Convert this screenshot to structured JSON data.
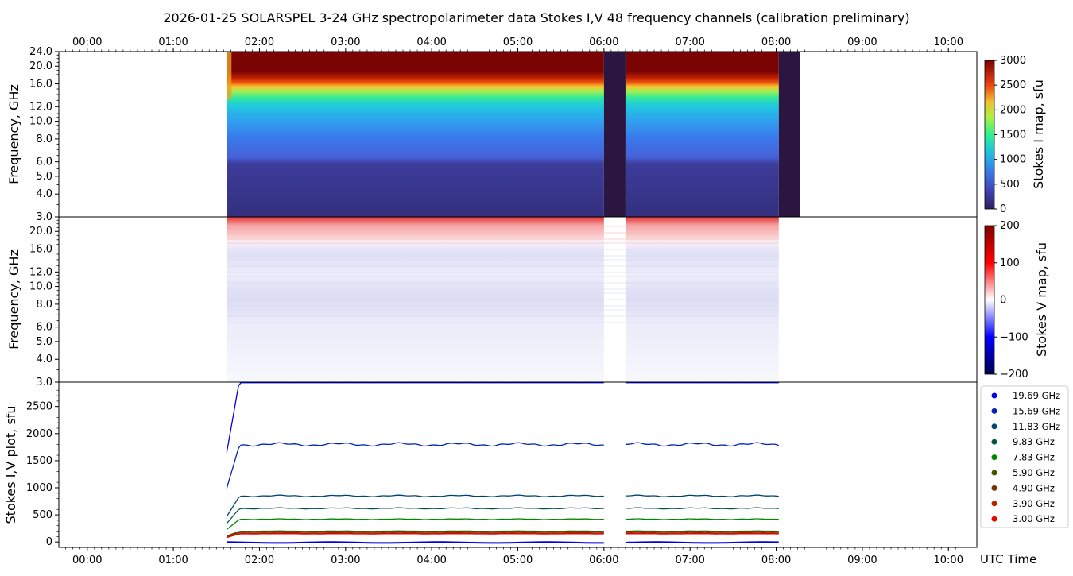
{
  "title": "2026-01-25  SOLARSPEL  3-24 GHz spectropolarimeter data   Stokes I,V   48 frequency channels   (calibration preliminary)",
  "chart_data": [
    {
      "type": "heatmap",
      "name": "stokes-i-map",
      "ylabel": "Frequency, GHz",
      "ylim": [
        3.0,
        24.0
      ],
      "yscale": "log",
      "yticks": [
        "3.0",
        "4.0",
        "5.0",
        "6.0",
        "8.0",
        "10.0",
        "12.0",
        "16.0",
        "20.0",
        "24.0"
      ],
      "xticks": [
        "00:00",
        "01:00",
        "02:00",
        "03:00",
        "04:00",
        "05:00",
        "06:00",
        "07:00",
        "08:00",
        "09:00",
        "10:00"
      ],
      "xlim_hours": [
        -0.33,
        10.33
      ],
      "data_segments_hours": [
        [
          1.62,
          6.0
        ],
        [
          6.25,
          8.03
        ]
      ],
      "gap_segments_hours": [
        [
          6.0,
          6.25
        ],
        [
          8.03,
          8.28
        ]
      ],
      "colorbar": {
        "label": "Stokes I map, sfu",
        "ticks": [
          "0",
          "500",
          "1000",
          "1500",
          "2000",
          "2500",
          "3000"
        ],
        "range": [
          0,
          3000
        ],
        "colormap": "turbo"
      }
    },
    {
      "type": "heatmap",
      "name": "stokes-v-map",
      "ylabel": "Frequency, GHz",
      "ylim": [
        3.0,
        24.0
      ],
      "yscale": "log",
      "yticks": [
        "3.0",
        "4.0",
        "5.0",
        "6.0",
        "8.0",
        "10.0",
        "12.0",
        "16.0",
        "20.0"
      ],
      "colorbar": {
        "label": "Stokes V map, sfu",
        "ticks": [
          "200",
          "100",
          "0",
          "−100",
          "−200"
        ],
        "range": [
          -200,
          200
        ],
        "colormap": "seismic"
      }
    },
    {
      "type": "line",
      "name": "stokes-iv-plot",
      "ylabel": "Stokes I,V plot, sfu",
      "xlabel": "UTC Time",
      "ylim": [
        -100,
        2950
      ],
      "yticks": [
        "0",
        "500",
        "1000",
        "1500",
        "2000",
        "2500"
      ],
      "xticks": [
        "00:00",
        "01:00",
        "02:00",
        "03:00",
        "04:00",
        "05:00",
        "06:00",
        "07:00",
        "08:00",
        "09:00",
        "10:00"
      ],
      "legend_position": "right",
      "series": [
        {
          "name": "19.69 GHz",
          "color": "#0000e0",
          "level": 3000
        },
        {
          "name": "15.69 GHz",
          "color": "#0022bb",
          "level": 1800
        },
        {
          "name": "11.83 GHz",
          "color": "#004477",
          "level": 850
        },
        {
          "name": "9.83 GHz",
          "color": "#005544",
          "level": 620
        },
        {
          "name": "7.83 GHz",
          "color": "#008800",
          "level": 420
        },
        {
          "name": "5.90 GHz",
          "color": "#445500",
          "level": 200
        },
        {
          "name": "4.90 GHz",
          "color": "#773300",
          "level": 180
        },
        {
          "name": "3.90 GHz",
          "color": "#bb2200",
          "level": 160
        },
        {
          "name": "3.00 GHz",
          "color": "#ee0000",
          "level": 150
        }
      ]
    }
  ]
}
